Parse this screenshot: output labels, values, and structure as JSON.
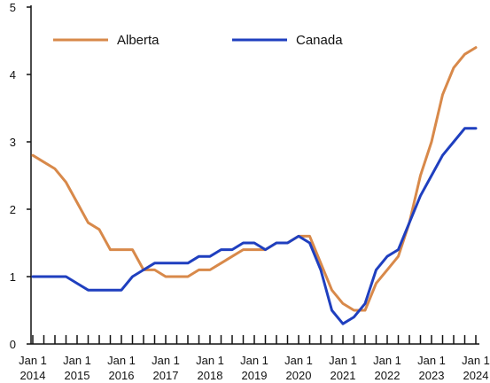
{
  "chart_data": {
    "type": "line",
    "ylim": [
      0,
      5
    ],
    "yticks": [
      "0",
      "1",
      "2",
      "3",
      "4",
      "5"
    ],
    "xlim": [
      2014.0,
      2024.0
    ],
    "xticks": [
      {
        "x": 2014,
        "line1": "Jan 1",
        "line2": "2014"
      },
      {
        "x": 2015,
        "line1": "Jan 1",
        "line2": "2015"
      },
      {
        "x": 2016,
        "line1": "Jan 1",
        "line2": "2016"
      },
      {
        "x": 2017,
        "line1": "Jan 1",
        "line2": "2017"
      },
      {
        "x": 2018,
        "line1": "Jan 1",
        "line2": "2018"
      },
      {
        "x": 2019,
        "line1": "Jan 1",
        "line2": "2019"
      },
      {
        "x": 2020,
        "line1": "Jan 1",
        "line2": "2020"
      },
      {
        "x": 2021,
        "line1": "Jan 1",
        "line2": "2021"
      },
      {
        "x": 2022,
        "line1": "Jan 1",
        "line2": "2022"
      },
      {
        "x": 2023,
        "line1": "Jan 1",
        "line2": "2023"
      },
      {
        "x": 2024,
        "line1": "Jan 1",
        "line2": "2024"
      }
    ],
    "grid": false,
    "legend_position": "top-left",
    "series": [
      {
        "name": "Alberta",
        "color": "#D8894A",
        "points": [
          [
            2014.0,
            2.8
          ],
          [
            2014.25,
            2.7
          ],
          [
            2014.5,
            2.6
          ],
          [
            2014.75,
            2.4
          ],
          [
            2015.0,
            2.1
          ],
          [
            2015.25,
            1.8
          ],
          [
            2015.5,
            1.7
          ],
          [
            2015.75,
            1.4
          ],
          [
            2016.0,
            1.4
          ],
          [
            2016.25,
            1.4
          ],
          [
            2016.5,
            1.1
          ],
          [
            2016.75,
            1.1
          ],
          [
            2017.0,
            1.0
          ],
          [
            2017.25,
            1.0
          ],
          [
            2017.5,
            1.0
          ],
          [
            2017.75,
            1.1
          ],
          [
            2018.0,
            1.1
          ],
          [
            2018.25,
            1.2
          ],
          [
            2018.5,
            1.3
          ],
          [
            2018.75,
            1.4
          ],
          [
            2019.0,
            1.4
          ],
          [
            2019.25,
            1.4
          ],
          [
            2019.5,
            1.5
          ],
          [
            2019.75,
            1.5
          ],
          [
            2020.0,
            1.6
          ],
          [
            2020.25,
            1.6
          ],
          [
            2020.5,
            1.2
          ],
          [
            2020.75,
            0.8
          ],
          [
            2021.0,
            0.6
          ],
          [
            2021.25,
            0.5
          ],
          [
            2021.5,
            0.5
          ],
          [
            2021.75,
            0.9
          ],
          [
            2022.0,
            1.1
          ],
          [
            2022.25,
            1.3
          ],
          [
            2022.5,
            1.8
          ],
          [
            2022.75,
            2.5
          ],
          [
            2023.0,
            3.0
          ],
          [
            2023.25,
            3.7
          ],
          [
            2023.5,
            4.1
          ],
          [
            2023.75,
            4.3
          ],
          [
            2024.0,
            4.4
          ]
        ]
      },
      {
        "name": "Canada",
        "color": "#1F3FBF",
        "points": [
          [
            2014.0,
            1.0
          ],
          [
            2014.25,
            1.0
          ],
          [
            2014.5,
            1.0
          ],
          [
            2014.75,
            1.0
          ],
          [
            2015.0,
            0.9
          ],
          [
            2015.25,
            0.8
          ],
          [
            2015.5,
            0.8
          ],
          [
            2015.75,
            0.8
          ],
          [
            2016.0,
            0.8
          ],
          [
            2016.25,
            1.0
          ],
          [
            2016.5,
            1.1
          ],
          [
            2016.75,
            1.2
          ],
          [
            2017.0,
            1.2
          ],
          [
            2017.25,
            1.2
          ],
          [
            2017.5,
            1.2
          ],
          [
            2017.75,
            1.3
          ],
          [
            2018.0,
            1.3
          ],
          [
            2018.25,
            1.4
          ],
          [
            2018.5,
            1.4
          ],
          [
            2018.75,
            1.5
          ],
          [
            2019.0,
            1.5
          ],
          [
            2019.25,
            1.4
          ],
          [
            2019.5,
            1.5
          ],
          [
            2019.75,
            1.5
          ],
          [
            2020.0,
            1.6
          ],
          [
            2020.25,
            1.5
          ],
          [
            2020.5,
            1.1
          ],
          [
            2020.75,
            0.5
          ],
          [
            2021.0,
            0.3
          ],
          [
            2021.25,
            0.4
          ],
          [
            2021.5,
            0.6
          ],
          [
            2021.75,
            1.1
          ],
          [
            2022.0,
            1.3
          ],
          [
            2022.25,
            1.4
          ],
          [
            2022.5,
            1.8
          ],
          [
            2022.75,
            2.2
          ],
          [
            2023.0,
            2.5
          ],
          [
            2023.25,
            2.8
          ],
          [
            2023.5,
            3.0
          ],
          [
            2023.75,
            3.2
          ],
          [
            2024.0,
            3.2
          ]
        ]
      }
    ]
  }
}
